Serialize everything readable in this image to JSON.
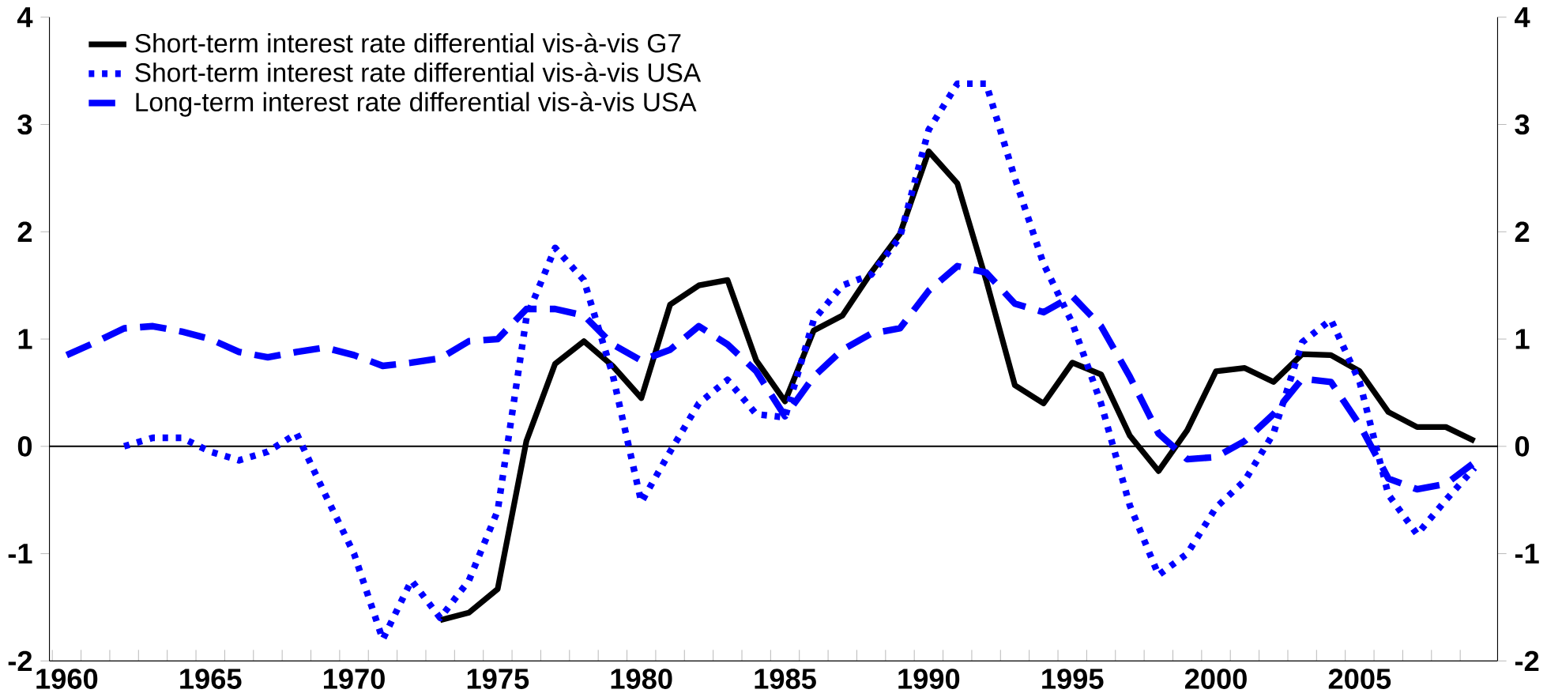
{
  "chart_data": {
    "type": "line",
    "x": [
      1960,
      1961,
      1962,
      1963,
      1964,
      1965,
      1966,
      1967,
      1968,
      1969,
      1970,
      1971,
      1972,
      1973,
      1974,
      1975,
      1976,
      1977,
      1978,
      1979,
      1980,
      1981,
      1982,
      1983,
      1984,
      1985,
      1986,
      1987,
      1988,
      1989,
      1990,
      1991,
      1992,
      1993,
      1994,
      1995,
      1996,
      1997,
      1998,
      1999,
      2000,
      2001,
      2002,
      2003,
      2004,
      2005,
      2006,
      2007,
      2008,
      2009
    ],
    "series": [
      {
        "name": "Short-term interest rate differential vis-à-vis G7",
        "color": "#000000",
        "line_style": "solid",
        "values": [
          null,
          null,
          null,
          null,
          null,
          null,
          null,
          null,
          null,
          null,
          null,
          null,
          null,
          -1.62,
          -1.55,
          -1.33,
          0.05,
          0.77,
          0.98,
          0.75,
          0.45,
          1.32,
          1.5,
          1.55,
          0.8,
          0.42,
          1.08,
          1.22,
          1.62,
          1.98,
          2.75,
          2.45,
          1.55,
          0.57,
          0.4,
          0.78,
          0.67,
          0.1,
          -0.23,
          0.15,
          0.7,
          0.73,
          0.6,
          0.86,
          0.85,
          0.7,
          0.32,
          0.18,
          0.18,
          0.05
        ]
      },
      {
        "name": "Short-term interest rate differential vis-à-vis USA",
        "color": "#0000ff",
        "line_style": "dotted",
        "values": [
          null,
          null,
          0.0,
          0.08,
          0.08,
          -0.05,
          -0.13,
          -0.05,
          0.12,
          -0.45,
          -1.0,
          -1.8,
          -1.25,
          -1.6,
          -1.25,
          -0.6,
          1.2,
          1.85,
          1.55,
          0.67,
          -0.52,
          -0.05,
          0.4,
          0.62,
          0.3,
          0.27,
          1.18,
          1.5,
          1.6,
          1.95,
          2.95,
          3.38,
          3.38,
          2.5,
          1.7,
          1.15,
          0.4,
          -0.55,
          -1.2,
          -1.0,
          -0.57,
          -0.32,
          0.12,
          0.97,
          1.18,
          0.6,
          -0.45,
          -0.82,
          -0.5,
          -0.2
        ]
      },
      {
        "name": "Long-term interest rate differential vis-à-vis USA",
        "color": "#0000ff",
        "line_style": "dashed",
        "values": [
          0.85,
          0.97,
          1.1,
          1.12,
          1.07,
          1.0,
          0.88,
          0.83,
          0.88,
          0.92,
          0.85,
          0.75,
          0.78,
          0.82,
          0.98,
          1.0,
          1.28,
          1.28,
          1.22,
          0.95,
          0.8,
          0.9,
          1.12,
          0.95,
          0.7,
          0.28,
          0.65,
          0.9,
          1.05,
          1.1,
          1.45,
          1.68,
          1.62,
          1.33,
          1.25,
          1.4,
          1.12,
          0.65,
          0.12,
          -0.12,
          -0.1,
          0.05,
          0.3,
          0.63,
          0.6,
          0.2,
          -0.3,
          -0.4,
          -0.35,
          -0.15
        ]
      }
    ],
    "xlim": [
      1959.4,
      2009.8
    ],
    "xticks": [
      1960,
      1965,
      1970,
      1975,
      1980,
      1985,
      1990,
      1995,
      2000,
      2005,
      {
        "value": 1959.5,
        "label": null
      },
      {
        "value": 1960.5,
        "label": null
      },
      {
        "value": 1961.5,
        "label": null
      },
      {
        "value": 1962.5,
        "label": null
      },
      {
        "value": 1963.5,
        "label": null
      },
      {
        "value": 1964.5,
        "label": null
      },
      {
        "value": 1965.5,
        "label": null
      },
      {
        "value": 1966.5,
        "label": null
      },
      {
        "value": 1967.5,
        "label": null
      },
      {
        "value": 1968.5,
        "label": null
      },
      {
        "value": 1969.5,
        "label": null
      },
      {
        "value": 1970.5,
        "label": null
      },
      {
        "value": 1971.5,
        "label": null
      },
      {
        "value": 1972.5,
        "label": null
      },
      {
        "value": 1973.5,
        "label": null
      },
      {
        "value": 1974.5,
        "label": null
      },
      {
        "value": 1975.5,
        "label": null
      },
      {
        "value": 1976.5,
        "label": null
      },
      {
        "value": 1977.5,
        "label": null
      },
      {
        "value": 1978.5,
        "label": null
      },
      {
        "value": 1979.5,
        "label": null
      },
      {
        "value": 1980.5,
        "label": null
      },
      {
        "value": 1981.5,
        "label": null
      },
      {
        "value": 1982.5,
        "label": null
      },
      {
        "value": 1983.5,
        "label": null
      },
      {
        "value": 1984.5,
        "label": null
      },
      {
        "value": 1985.5,
        "label": null
      },
      {
        "value": 1986.5,
        "label": null
      },
      {
        "value": 1987.5,
        "label": null
      },
      {
        "value": 1988.5,
        "label": null
      },
      {
        "value": 1989.5,
        "label": null
      },
      {
        "value": 1990.5,
        "label": null
      },
      {
        "value": 1991.5,
        "label": null
      },
      {
        "value": 1992.5,
        "label": null
      },
      {
        "value": 1993.5,
        "label": null
      },
      {
        "value": 1994.5,
        "label": null
      },
      {
        "value": 1995.5,
        "label": null
      },
      {
        "value": 1996.5,
        "label": null
      },
      {
        "value": 1997.5,
        "label": null
      },
      {
        "value": 1998.5,
        "label": null
      },
      {
        "value": 1999.5,
        "label": null
      },
      {
        "value": 2000.5,
        "label": null
      },
      {
        "value": 2001.5,
        "label": null
      },
      {
        "value": 2002.5,
        "label": null
      },
      {
        "value": 2003.5,
        "label": null
      },
      {
        "value": 2004.5,
        "label": null
      },
      {
        "value": 2005.5,
        "label": null
      },
      {
        "value": 2006.5,
        "label": null
      },
      {
        "value": 2007.5,
        "label": null
      },
      {
        "value": 2008.5,
        "label": null
      }
    ],
    "ylim": [
      -2,
      4
    ],
    "yticks": [
      -2,
      -1,
      0,
      1,
      2,
      3,
      4
    ],
    "y2lim": [
      -2,
      4
    ],
    "y2ticks": [
      -2,
      -1,
      0,
      1,
      2,
      3,
      4
    ],
    "ref_lines": [
      {
        "axis": "y",
        "value": 0,
        "color": "#000000"
      }
    ],
    "legend": "top left",
    "marker": "none"
  }
}
